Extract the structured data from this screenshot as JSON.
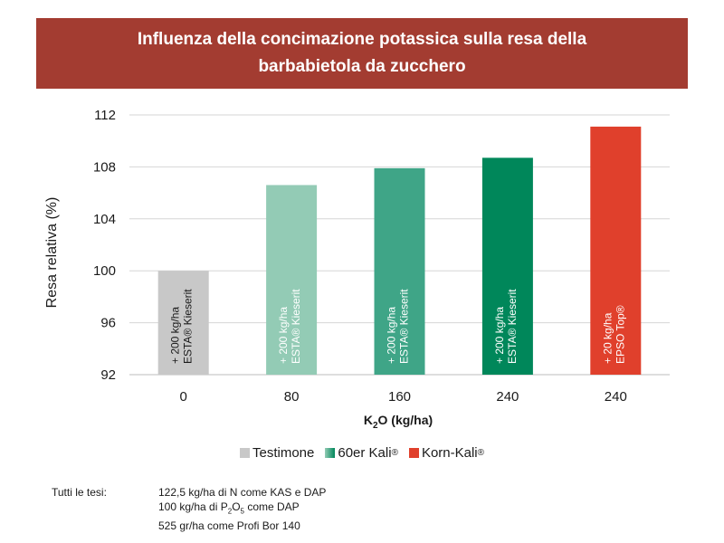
{
  "title": "Influenza della concimazione potassica sulla resa della barbabietola da zucchero",
  "colors": {
    "title_bg": "#a33c31",
    "testimone": "#c8c8c8",
    "kali_1": "#93cbb5",
    "kali_2": "#3fa587",
    "kali_3": "#00875a",
    "korn": "#e0402c"
  },
  "chart_data": {
    "type": "bar",
    "title": "Influenza della concimazione potassica sulla resa della barbabietola da zucchero",
    "ylabel": "Resa relativa (%)",
    "xlabel": "K2O (kg/ha)",
    "ylim": [
      92,
      112
    ],
    "yticks": [
      92,
      96,
      100,
      104,
      108,
      112
    ],
    "grid": true,
    "categories": [
      "0",
      "80",
      "160",
      "240",
      "240"
    ],
    "values": [
      100,
      106.6,
      107.9,
      108.7,
      111.1
    ],
    "bar_colors": [
      "#c8c8c8",
      "#93cbb5",
      "#3fa587",
      "#00875a",
      "#e0402c"
    ],
    "bar_labels": [
      [
        "+ 200 kg/ha",
        "ESTA® Kieserit"
      ],
      [
        "+ 200 kg/ha",
        "ESTA® Kieserit"
      ],
      [
        "+ 200 kg/ha",
        "ESTA® Kieserit"
      ],
      [
        "+ 200 kg/ha",
        "ESTA® Kieserit"
      ],
      [
        "+ 20 kg/ha",
        "EPSO Top®"
      ]
    ],
    "legend": [
      {
        "label": "Testimone",
        "color": "#c8c8c8"
      },
      {
        "label": "60er Kali",
        "color": "#3fa587",
        "gradient": [
          "#93cbb5",
          "#00875a"
        ]
      },
      {
        "label": "Korn-Kali",
        "color": "#e0402c"
      }
    ],
    "legend_position": "bottom"
  },
  "axis": {
    "xlabel_main": "K",
    "xlabel_sub": "2",
    "xlabel_rest": "O (kg/ha)"
  },
  "notes": {
    "label": "Tutti le tesi:",
    "line1": "122,5 kg/ha di N come KAS e DAP",
    "line2_a": "100 kg/ha di P",
    "line2_sub1": "2",
    "line2_b": "O",
    "line2_sub2": "5",
    "line2_c": " come DAP",
    "line3": "525 gr/ha come Profi Bor 140"
  }
}
